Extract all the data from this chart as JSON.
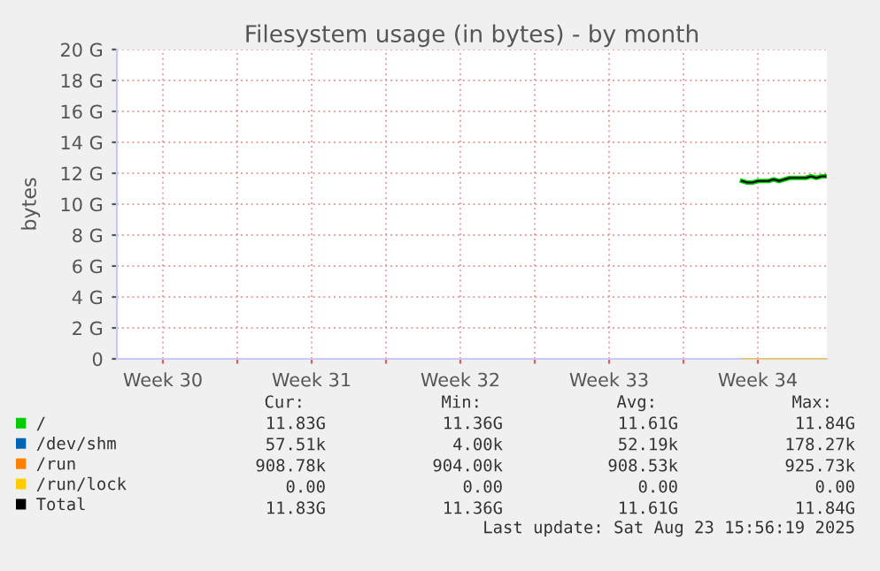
{
  "chart_data": {
    "type": "line",
    "title": "Filesystem usage (in bytes) - by month",
    "ylabel": "bytes",
    "x": [
      "2025-08-20T18:00",
      "2025-08-21T00:00",
      "2025-08-21T06:00",
      "2025-08-21T12:00",
      "2025-08-21T18:00",
      "2025-08-22T00:00",
      "2025-08-22T06:00",
      "2025-08-22T12:00",
      "2025-08-22T18:00",
      "2025-08-23T00:00",
      "2025-08-23T06:00",
      "2025-08-23T12:00",
      "2025-08-23T18:00",
      "2025-08-24T00:00",
      "2025-08-24T06:00",
      "2025-08-24T12:00",
      "2025-08-24T16:00"
    ],
    "series": [
      {
        "name": "/",
        "color": "#00cc00",
        "values": [
          11.5,
          11.4,
          11.4,
          11.5,
          11.5,
          11.5,
          11.6,
          11.5,
          11.6,
          11.7,
          11.7,
          11.7,
          11.7,
          11.8,
          11.7,
          11.8,
          11.8
        ]
      },
      {
        "name": "/dev/shm",
        "color": "#0066b3",
        "values": [
          null,
          null,
          null,
          null,
          null,
          null,
          null,
          null,
          null,
          null,
          null,
          null,
          null,
          null,
          null,
          null,
          null
        ]
      },
      {
        "name": "/run",
        "color": "#ff8000",
        "values": [
          null,
          null,
          null,
          null,
          null,
          null,
          null,
          null,
          null,
          null,
          null,
          null,
          null,
          null,
          null,
          null,
          null
        ]
      },
      {
        "name": "/run/lock",
        "color": "#ffcc00",
        "values": [
          0,
          0,
          0,
          0,
          0,
          0,
          0,
          0,
          0,
          0,
          0,
          0,
          0,
          0,
          0,
          0,
          0
        ]
      },
      {
        "name": "Total",
        "color": "#000000",
        "values": [
          11.5,
          11.4,
          11.4,
          11.5,
          11.5,
          11.5,
          11.6,
          11.5,
          11.6,
          11.7,
          11.7,
          11.7,
          11.7,
          11.8,
          11.7,
          11.8,
          11.8
        ]
      }
    ],
    "xlim": [
      "2025-07-22T08:00",
      "2025-08-24T18:00"
    ],
    "xticks": [
      {
        "value": "2025-07-24T12:00",
        "label": "Week 30"
      },
      {
        "value": "2025-07-28",
        "label": null
      },
      {
        "value": "2025-07-31T12:00",
        "label": "Week 31"
      },
      {
        "value": "2025-08-04",
        "label": null
      },
      {
        "value": "2025-08-07T12:00",
        "label": "Week 32"
      },
      {
        "value": "2025-08-11",
        "label": null
      },
      {
        "value": "2025-08-14T12:00",
        "label": "Week 33"
      },
      {
        "value": "2025-08-18",
        "label": null
      },
      {
        "value": "2025-08-21T12:00",
        "label": "Week 34"
      }
    ],
    "ylim": [
      0,
      20
    ],
    "yticks": [
      0,
      {
        "value": 2,
        "label": "2 G"
      },
      {
        "value": 4,
        "label": "4 G"
      },
      {
        "value": 6,
        "label": "6 G"
      },
      {
        "value": 8,
        "label": "8 G"
      },
      {
        "value": 10,
        "label": "10 G"
      },
      {
        "value": 12,
        "label": "12 G"
      },
      {
        "value": 14,
        "label": "14 G"
      },
      {
        "value": 16,
        "label": "16 G"
      },
      {
        "value": 18,
        "label": "18 G"
      },
      {
        "value": 20,
        "label": "20 G"
      }
    ],
    "grid": true,
    "legend": "bottom left",
    "marker": "none",
    "line_style": "solid",
    "annotations": [
      "Cur:",
      "Min:",
      "Avg:",
      "Max:",
      "11.83G",
      "11.36G",
      "11.61G",
      "11.84G",
      "57.51k",
      "4.00k",
      "52.19k",
      "178.27k",
      "908.78k",
      "904.00k",
      "908.53k",
      "925.73k",
      "0.00",
      "0.00",
      "0.00",
      "0.00",
      "11.83G",
      "11.36G",
      "11.61G",
      "11.84G",
      "Last update: Sat Aug 23 15:56:19 2025"
    ]
  }
}
